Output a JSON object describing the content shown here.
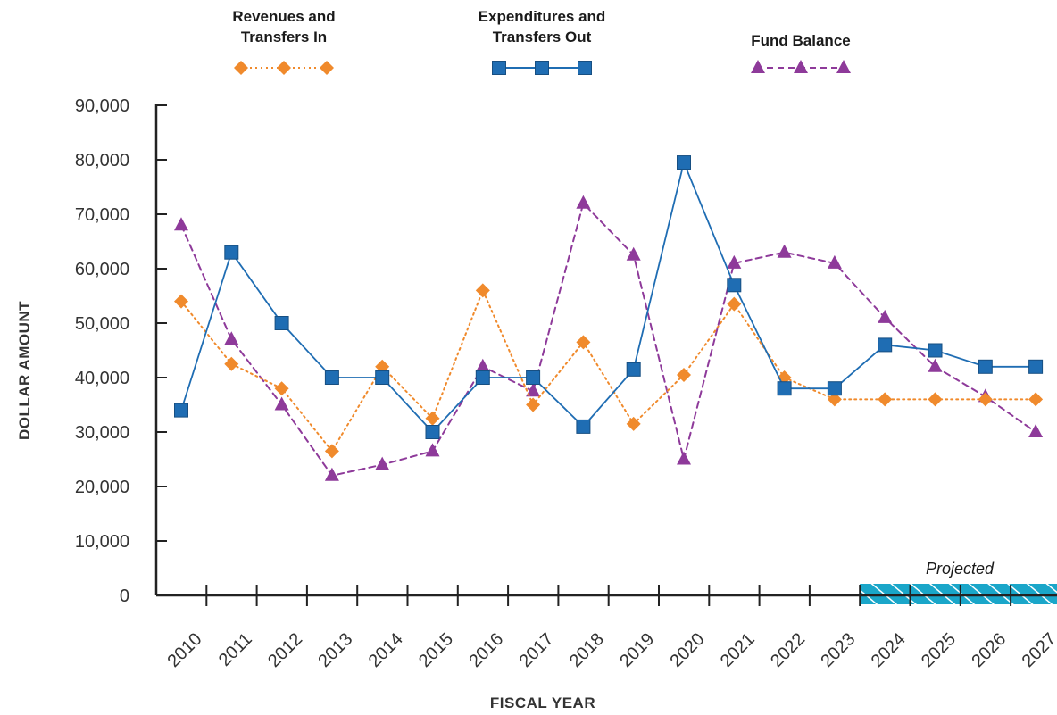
{
  "chart_data": {
    "type": "line",
    "xlabel": "FISCAL YEAR",
    "ylabel": "DOLLAR AMOUNT",
    "ylim": [
      0,
      90000
    ],
    "yticks": [
      0,
      10000,
      20000,
      30000,
      40000,
      50000,
      60000,
      70000,
      80000,
      90000
    ],
    "ytick_labels": [
      "0",
      "10,000",
      "20,000",
      "30,000",
      "40,000",
      "50,000",
      "60,000",
      "70,000",
      "80,000",
      "90,000"
    ],
    "categories": [
      "2010",
      "2011",
      "2012",
      "2013",
      "2014",
      "2015",
      "2016",
      "2017",
      "2018",
      "2019",
      "2020",
      "2021",
      "2022",
      "2023",
      "2024",
      "2025",
      "2026",
      "2027"
    ],
    "grid": false,
    "legend_position": "top",
    "projected": {
      "label": "Projected",
      "from": "2024",
      "to": "2027",
      "color": "#1aa6c9"
    },
    "series": [
      {
        "name_lines": [
          "Revenues and",
          "Transfers In"
        ],
        "marker": "diamond",
        "line_style": "dotted",
        "color": "#f08a2c",
        "values": [
          54000,
          42500,
          38000,
          26500,
          42000,
          32500,
          56000,
          35000,
          46500,
          31500,
          40500,
          53500,
          40000,
          36000,
          36000,
          36000,
          36000,
          36000
        ]
      },
      {
        "name_lines": [
          "Expenditures and",
          "Transfers Out"
        ],
        "marker": "square",
        "line_style": "solid",
        "color": "#1f6db3",
        "values": [
          34000,
          63000,
          50000,
          40000,
          40000,
          30000,
          40000,
          40000,
          31000,
          41500,
          79500,
          57000,
          38000,
          38000,
          46000,
          45000,
          42000,
          42000
        ]
      },
      {
        "name_lines": [
          "Fund Balance"
        ],
        "marker": "triangle",
        "line_style": "dashed",
        "color": "#8e3a9a",
        "values": [
          68000,
          47000,
          35000,
          22000,
          24000,
          26500,
          42000,
          37500,
          72000,
          62500,
          25000,
          61000,
          63000,
          61000,
          51000,
          42000,
          36500,
          30000
        ]
      }
    ]
  }
}
